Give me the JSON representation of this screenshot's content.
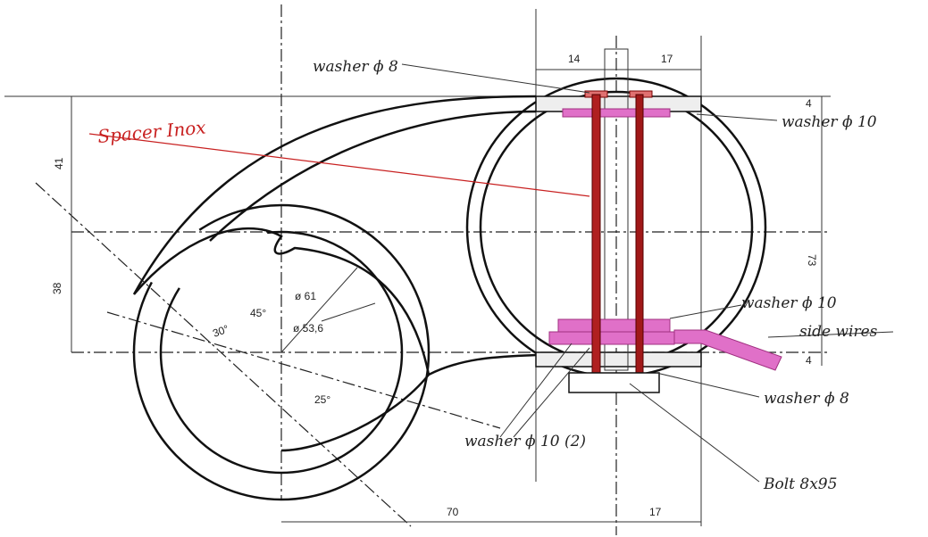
{
  "labels": {
    "washer_8_top": "washer ϕ 8",
    "dim_14": "14",
    "dim_17_top": "17",
    "washer_10_top": "washer ϕ 10",
    "spacer": "Spacer Inox",
    "dim_41": "41",
    "dim_73": "73",
    "dim_38": "38",
    "dia_61": "ø 61",
    "dia_53": "ø 53,6",
    "ang_45": "45°",
    "ang_30": "30°",
    "ang_25": "25°",
    "washer_10_mid": "washer ϕ 10",
    "side_wires": "side wires",
    "dim_4_top": "4",
    "dim_4_bottom": "4",
    "washer_8_bottom": "washer ϕ 8",
    "washer_10_2": "washer ϕ 10 (2)",
    "bolt": "Bolt 8x95",
    "dim_70": "70",
    "dim_17_bottom": "17"
  }
}
